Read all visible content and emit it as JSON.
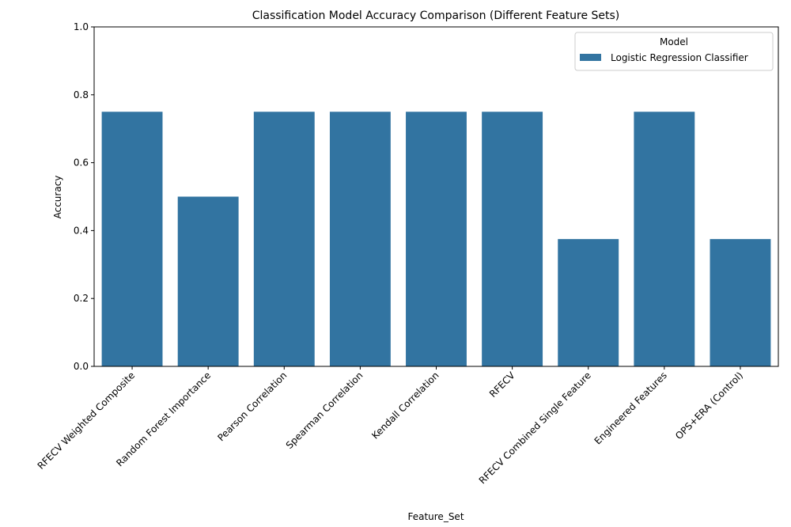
{
  "chart_data": {
    "type": "bar",
    "title": "Classification Model Accuracy Comparison (Different Feature Sets)",
    "xlabel": "Feature_Set",
    "ylabel": "Accuracy",
    "ylim": [
      0,
      1.0
    ],
    "yticks": [
      "0.0",
      "0.2",
      "0.4",
      "0.6",
      "0.8",
      "1.0"
    ],
    "categories": [
      "RFECV Weighted Composite",
      "Random Forest Importance",
      "Pearson Correlation",
      "Spearman Correlation",
      "Kendall Correlation",
      "RFECV",
      "RFECV Combined Single Feature",
      "Engineered Features",
      "OPS+ERA (Control)"
    ],
    "series": [
      {
        "name": "Logistic Regression Classifier",
        "color": "#3274a1",
        "values": [
          0.75,
          0.5,
          0.75,
          0.75,
          0.75,
          0.75,
          0.375,
          0.75,
          0.375
        ]
      }
    ],
    "legend": {
      "title": "Model",
      "placement": "top-right"
    },
    "grid": false
  }
}
